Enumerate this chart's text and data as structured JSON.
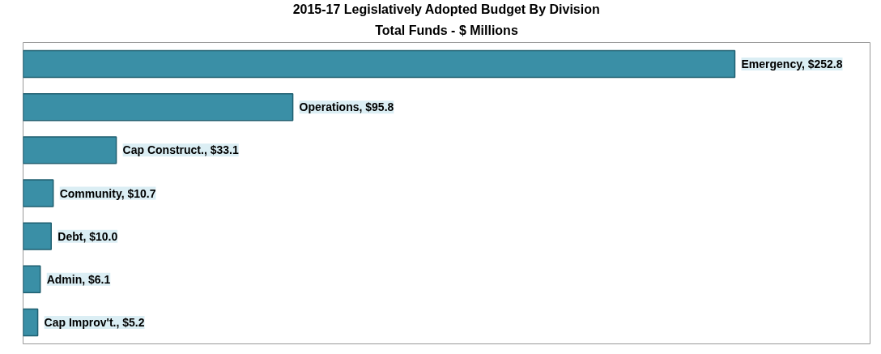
{
  "chart_data": {
    "type": "bar",
    "orientation": "horizontal",
    "title": "2015-17 Legislatively Adopted Budget By Division",
    "subtitle": "Total Funds - $ Millions",
    "categories": [
      null,
      null,
      null,
      null,
      null,
      null,
      null
    ],
    "values": [
      252.8,
      95.8,
      33.1,
      10.7,
      10.0,
      6.1,
      5.2
    ],
    "value_labels": [
      "Emergency, $252.8",
      "Operations, $95.8",
      "Cap Construct., $33.1",
      "Community, $10.7",
      "Debt, $10.0",
      "Admin, $6.1",
      "Cap Improv't., $5.2"
    ],
    "color": "#3a8fa6",
    "grid": false,
    "tick_labels": false
  }
}
